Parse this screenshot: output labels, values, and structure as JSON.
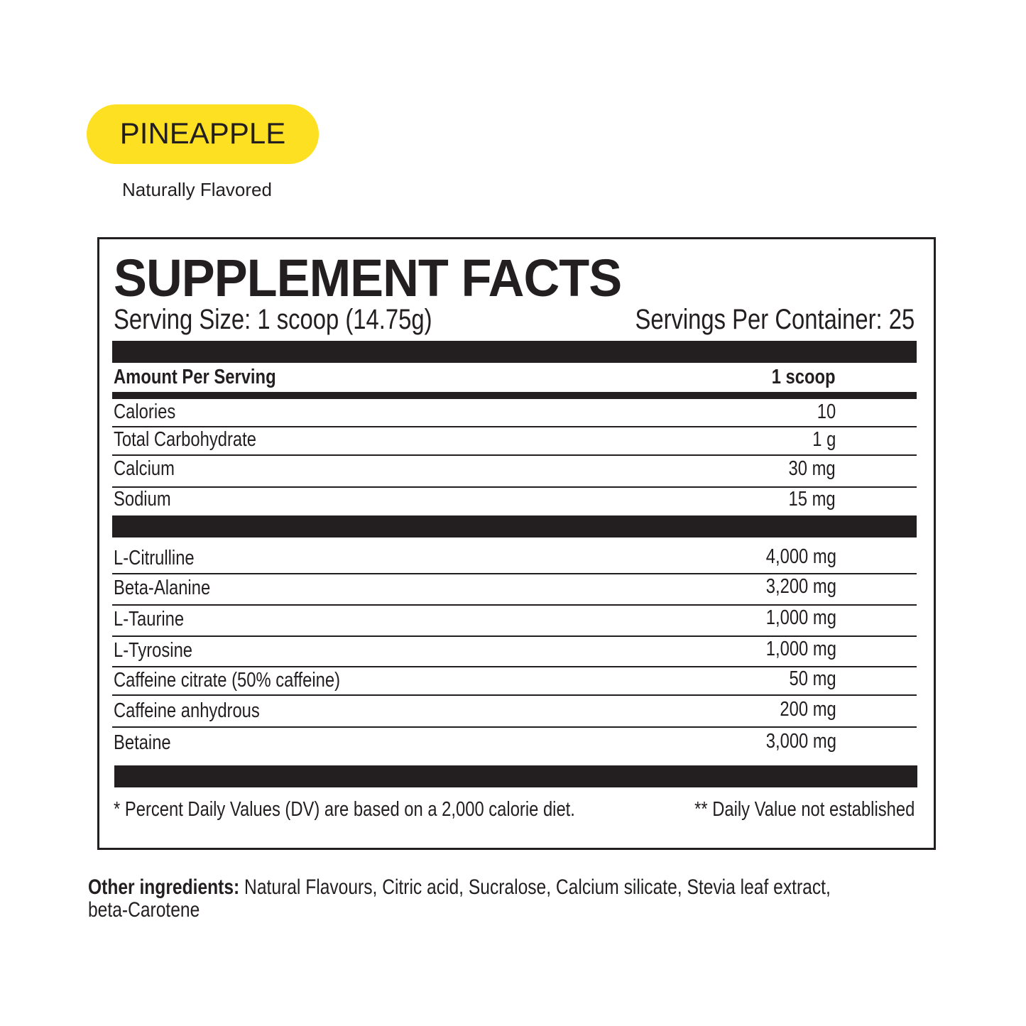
{
  "flavor": {
    "name": "PINEAPPLE",
    "subtitle": "Naturally Flavored",
    "color": "#fde021"
  },
  "facts": {
    "title": "SUPPLEMENT FACTS",
    "serving_size": "Serving Size: 1 scoop (14.75g)",
    "servings_per_container": "Servings Per Container: 25",
    "amount_header": "Amount Per Serving",
    "amount_unit": "1 scoop",
    "nutrients": [
      {
        "name": "Calories",
        "amount": "10"
      },
      {
        "name": "Total Carbohydrate",
        "amount": "1 g"
      },
      {
        "name": "Calcium",
        "amount": "30 mg"
      },
      {
        "name": "Sodium",
        "amount": "15 mg"
      }
    ],
    "ingredients": [
      {
        "name": "L-Citrulline",
        "amount": "4,000 mg"
      },
      {
        "name": "Beta-Alanine",
        "amount": "3,200 mg"
      },
      {
        "name": "L-Taurine",
        "amount": "1,000 mg"
      },
      {
        "name": "L-Tyrosine",
        "amount": "1,000 mg"
      },
      {
        "name": "Caffeine citrate (50% caffeine)",
        "amount": "50 mg"
      },
      {
        "name": "Caffeine anhydrous",
        "amount": "200 mg"
      },
      {
        "name": "Betaine",
        "amount": "3,000 mg"
      }
    ],
    "footnote_left": "* Percent Daily Values (DV) are based on a 2,000 calorie diet.",
    "footnote_right": "** Daily Value not established"
  },
  "other_ingredients": {
    "label": "Other ingredients:",
    "line1": " Natural Flavours, Citric acid, Sucralose, Calcium silicate, Stevia leaf extract,",
    "line2": "beta-Carotene"
  }
}
